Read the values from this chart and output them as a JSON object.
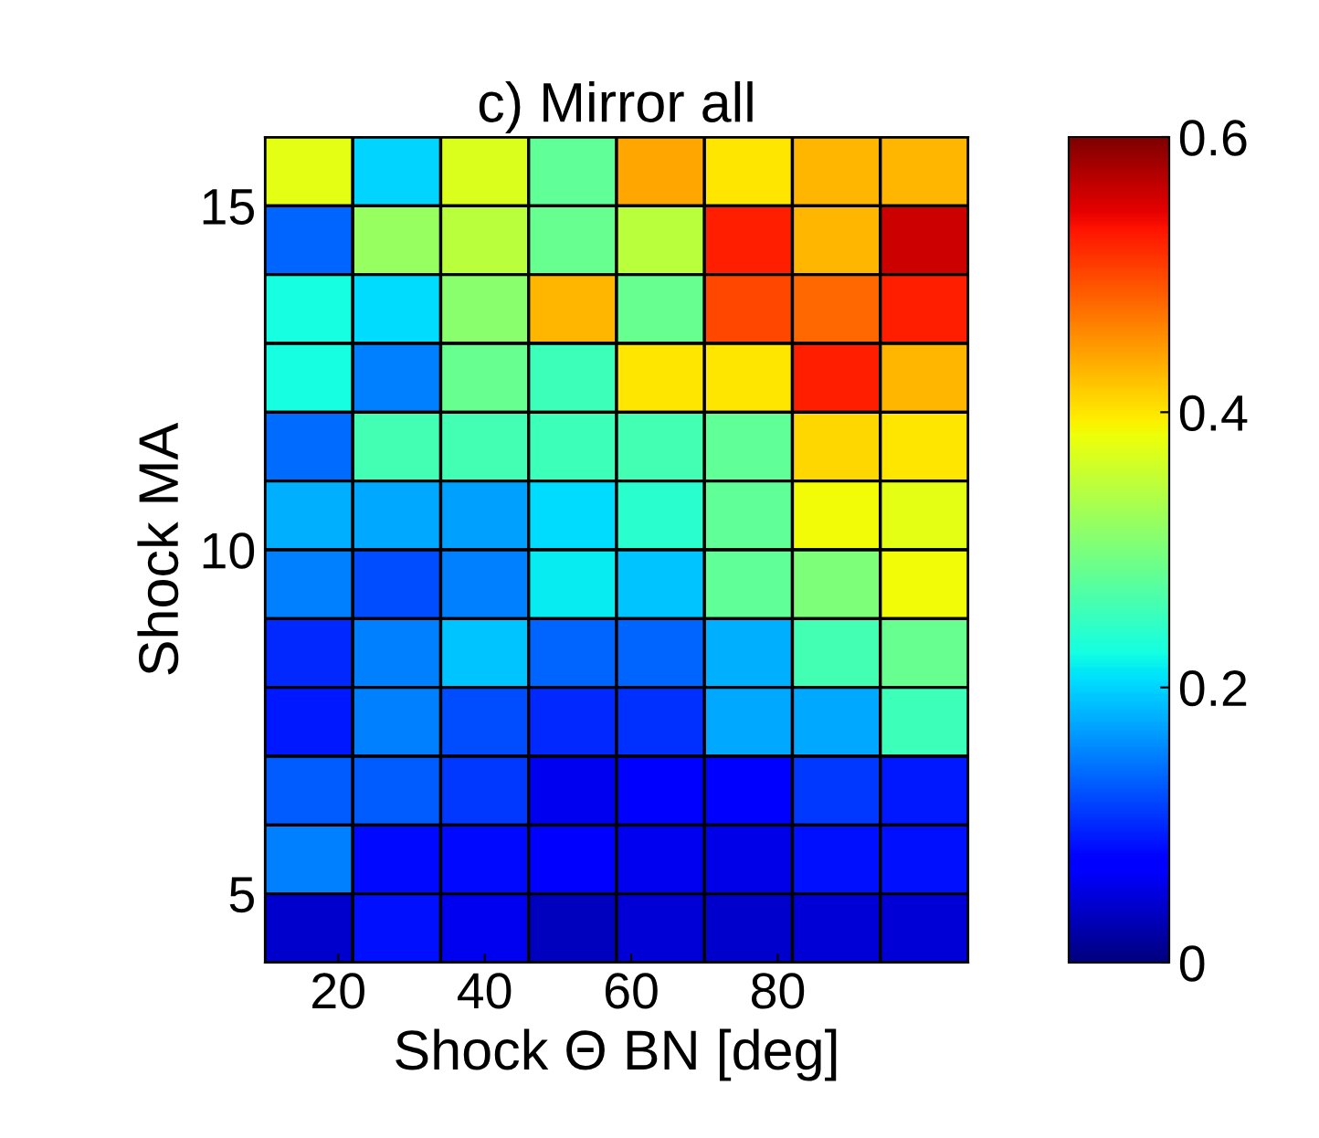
{
  "chart_data": {
    "type": "heatmap",
    "title": "c) Mirror all",
    "xlabel": "Shock Θ BN [deg]",
    "ylabel": "Shock MA",
    "x": [
      16,
      28,
      40,
      52,
      64,
      76,
      88,
      100
    ],
    "y": [
      15.5,
      14.5,
      13.5,
      12.5,
      11.5,
      10.5,
      9.5,
      8.5,
      7.5,
      6.5,
      5.5,
      4.5
    ],
    "xlim": [
      10,
      106
    ],
    "ylim": [
      4,
      16
    ],
    "xticks": [
      20,
      40,
      60,
      80
    ],
    "yticks": [
      5,
      10,
      15
    ],
    "clim": [
      0,
      0.6
    ],
    "cticks": [
      0,
      0.2,
      0.4,
      0.6
    ],
    "cells": [
      [
        0.375,
        0.2,
        0.37,
        0.28,
        0.44,
        0.4,
        0.43,
        0.43
      ],
      [
        0.135,
        0.32,
        0.345,
        0.285,
        0.345,
        0.525,
        0.43,
        0.56
      ],
      [
        0.225,
        0.205,
        0.31,
        0.43,
        0.285,
        0.5,
        0.48,
        0.525
      ],
      [
        0.225,
        0.15,
        0.285,
        0.255,
        0.4,
        0.4,
        0.525,
        0.43
      ],
      [
        0.14,
        0.26,
        0.26,
        0.255,
        0.26,
        0.28,
        0.41,
        0.4
      ],
      [
        0.18,
        0.175,
        0.17,
        0.205,
        0.24,
        0.28,
        0.385,
        0.375
      ],
      [
        0.15,
        0.12,
        0.15,
        0.215,
        0.19,
        0.28,
        0.3,
        0.385
      ],
      [
        0.1,
        0.15,
        0.19,
        0.135,
        0.135,
        0.18,
        0.26,
        0.285
      ],
      [
        0.09,
        0.15,
        0.12,
        0.1,
        0.105,
        0.175,
        0.175,
        0.255
      ],
      [
        0.13,
        0.13,
        0.11,
        0.06,
        0.07,
        0.07,
        0.11,
        0.09
      ],
      [
        0.15,
        0.08,
        0.08,
        0.075,
        0.06,
        0.055,
        0.085,
        0.085
      ],
      [
        0.04,
        0.085,
        0.06,
        0.035,
        0.045,
        0.04,
        0.045,
        0.045
      ]
    ]
  }
}
